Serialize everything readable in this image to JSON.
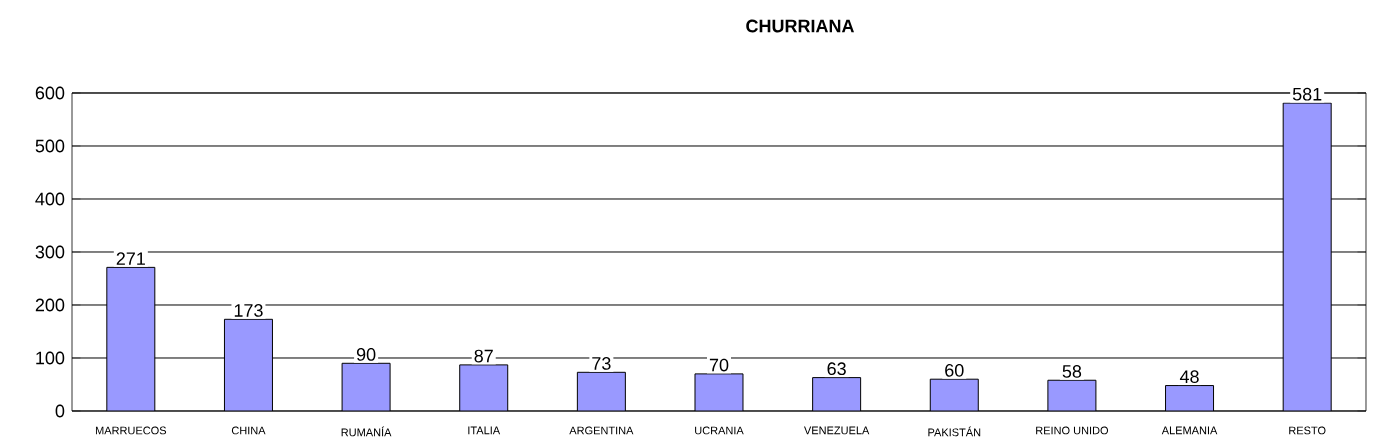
{
  "chart_data": {
    "type": "bar",
    "title": "CHURRIANA",
    "categories": [
      "MARRUECOS",
      "CHINA",
      "RUMANÍA",
      "ITALIA",
      "ARGENTINA",
      "UCRANIA",
      "VENEZUELA",
      "PAKISTÁN",
      "REINO UNIDO",
      "ALEMANIA",
      "RESTO"
    ],
    "values": [
      271,
      173,
      90,
      87,
      73,
      70,
      63,
      60,
      58,
      48,
      581
    ],
    "color": "#9999ff",
    "ylim": [
      0,
      600
    ],
    "yticks": [
      0,
      100,
      200,
      300,
      400,
      500,
      600
    ],
    "grid": "y",
    "data_labels": true
  }
}
